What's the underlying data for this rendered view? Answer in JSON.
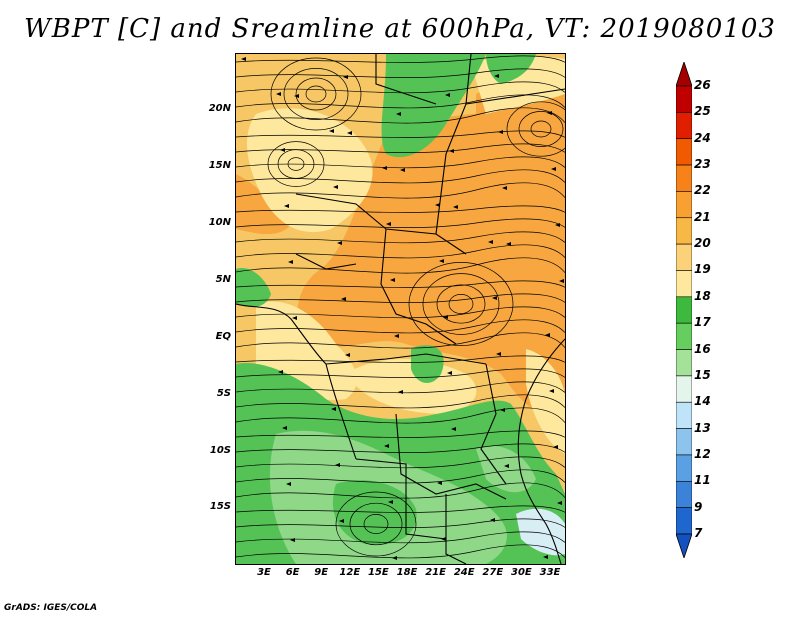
{
  "title": "WBPT [C] and Sreamline at 600hPa, VT: 2019080103",
  "credit": "GrADS: IGES/COLA",
  "map": {
    "lat_labels": [
      "20N",
      "15N",
      "10N",
      "5N",
      "EQ",
      "5S",
      "10S",
      "15S"
    ],
    "lon_labels": [
      "3E",
      "6E",
      "9E",
      "12E",
      "15E",
      "18E",
      "21E",
      "24E",
      "27E",
      "30E",
      "33E"
    ],
    "lat_range": [
      -19.5,
      25
    ],
    "lon_range": [
      0,
      35
    ]
  },
  "colorbar": {
    "levels": [
      "26",
      "25",
      "24",
      "23",
      "22",
      "21",
      "20",
      "19",
      "18",
      "17",
      "16",
      "15",
      "14",
      "13",
      "12",
      "11",
      "9",
      "7"
    ],
    "colors": [
      "#a50000",
      "#c00000",
      "#e01e00",
      "#f05a00",
      "#f7821a",
      "#f9a032",
      "#f8b846",
      "#fbd27a",
      "#fde89e",
      "#3dba3d",
      "#66cd5f",
      "#a4e29a",
      "#e4f5ec",
      "#bfe3f8",
      "#8cc4ee",
      "#5aa0e3",
      "#3a83d8",
      "#1f66cf",
      "#1350c0"
    ]
  },
  "colors": {
    "orange": "#f7a640",
    "light_orange": "#f7c765",
    "yellow": "#fde89e",
    "green": "#55c255",
    "light_green": "#8ed888",
    "pale_blue": "#d8eef5"
  }
}
